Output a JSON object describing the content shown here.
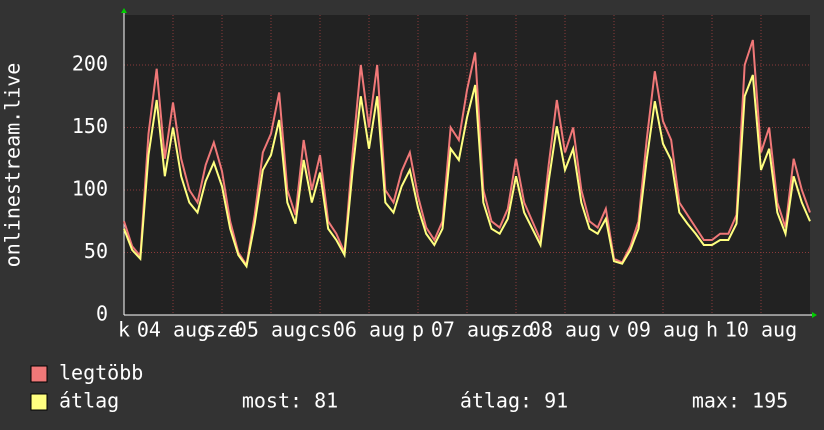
{
  "chart_data": {
    "type": "line",
    "ylabel": "onlinestream.live",
    "x": [
      0,
      2,
      4,
      6,
      8,
      10,
      12,
      14,
      16,
      18,
      20,
      22,
      24,
      26,
      28,
      30,
      32,
      34,
      36,
      38,
      40,
      42,
      44,
      46,
      48,
      50,
      52,
      54,
      56,
      58,
      60,
      62,
      64,
      66,
      68,
      70,
      72,
      74,
      76,
      78,
      80,
      82,
      84,
      86,
      88,
      90,
      92,
      94,
      96,
      98,
      100,
      102,
      104,
      106,
      108,
      110,
      112,
      114,
      116,
      118,
      120,
      122,
      124,
      126,
      128,
      130,
      132,
      134,
      136,
      138,
      140,
      142,
      144,
      146,
      148,
      150,
      152,
      154,
      156,
      158,
      160,
      162,
      164,
      166,
      168
    ],
    "series": [
      {
        "name": "legtöbb",
        "color": "#f07878",
        "values": [
          75,
          55,
          47,
          145,
          197,
          125,
          170,
          125,
          100,
          90,
          120,
          138,
          115,
          75,
          50,
          40,
          80,
          130,
          145,
          178,
          100,
          80,
          140,
          100,
          128,
          75,
          65,
          50,
          130,
          200,
          150,
          200,
          100,
          90,
          115,
          130,
          95,
          70,
          60,
          75,
          150,
          140,
          180,
          210,
          100,
          75,
          70,
          85,
          125,
          90,
          75,
          60,
          120,
          172,
          130,
          150,
          100,
          75,
          70,
          85,
          45,
          42,
          55,
          75,
          140,
          195,
          155,
          140,
          90,
          80,
          70,
          60,
          60,
          65,
          65,
          80,
          200,
          220,
          130,
          150,
          90,
          70,
          125,
          100,
          82
        ]
      },
      {
        "name": "átlag",
        "color": "#ffff80",
        "values": [
          69,
          52,
          45,
          128,
          172,
          111,
          150,
          111,
          90,
          82,
          107,
          122,
          103,
          69,
          48,
          39,
          73,
          116,
          128,
          156,
          90,
          73,
          124,
          90,
          114,
          69,
          60,
          48,
          116,
          175,
          133,
          175,
          90,
          82,
          103,
          116,
          86,
          65,
          56,
          69,
          133,
          124,
          158,
          184,
          90,
          69,
          65,
          77,
          111,
          82,
          69,
          56,
          107,
          151,
          116,
          133,
          90,
          69,
          65,
          77,
          43,
          41,
          52,
          69,
          124,
          171,
          137,
          124,
          82,
          73,
          65,
          56,
          56,
          60,
          60,
          73,
          175,
          192,
          116,
          133,
          82,
          65,
          111,
          90,
          75
        ]
      }
    ],
    "xlim": [
      0,
      168
    ],
    "xticks": [
      {
        "value": 0,
        "label": "k"
      },
      {
        "value": 12,
        "label": "04 aug"
      },
      {
        "value": 24,
        "label": "sze"
      },
      {
        "value": 36,
        "label": "05 aug"
      },
      {
        "value": 48,
        "label": "cs"
      },
      {
        "value": 60,
        "label": "06 aug"
      },
      {
        "value": 72,
        "label": "p"
      },
      {
        "value": 84,
        "label": "07 aug"
      },
      {
        "value": 96,
        "label": "szo"
      },
      {
        "value": 108,
        "label": "08 aug"
      },
      {
        "value": 120,
        "label": "v"
      },
      {
        "value": 132,
        "label": "09 aug"
      },
      {
        "value": 144,
        "label": "h"
      },
      {
        "value": 156,
        "label": "10 aug"
      }
    ],
    "ylim": [
      0,
      240
    ],
    "yticks": [
      0,
      50,
      100,
      150,
      200
    ],
    "grid": true,
    "stats": [
      "most: 81",
      "átlag: 91",
      "max: 195"
    ]
  }
}
